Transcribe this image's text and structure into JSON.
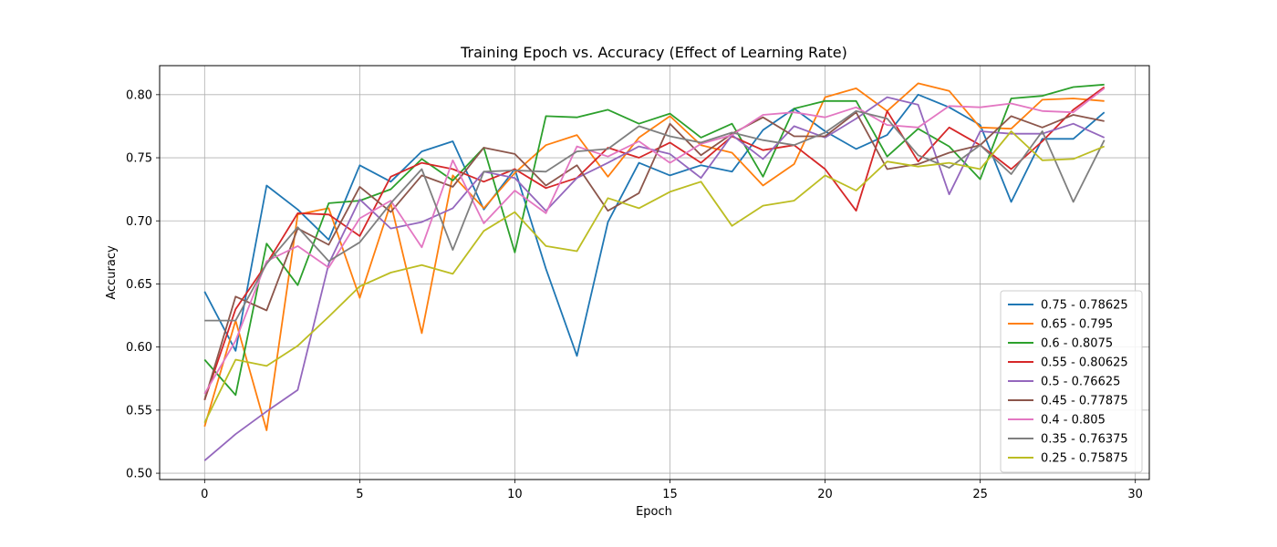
{
  "chart_data": {
    "type": "line",
    "title": "Training Epoch vs. Accuracy (Effect of Learning Rate)",
    "xlabel": "Epoch",
    "ylabel": "Accuracy",
    "xlim": [
      -1.45,
      30.45
    ],
    "ylim": [
      0.495,
      0.823
    ],
    "xticks": [
      0,
      5,
      10,
      15,
      20,
      25,
      30
    ],
    "yticks": [
      0.5,
      0.55,
      0.6,
      0.65,
      0.7,
      0.75,
      0.8
    ],
    "grid": true,
    "legend_position": "bottom-right",
    "x": [
      0,
      1,
      2,
      3,
      4,
      5,
      6,
      7,
      8,
      9,
      10,
      11,
      12,
      13,
      14,
      15,
      16,
      17,
      18,
      19,
      20,
      21,
      22,
      23,
      24,
      25,
      26,
      27,
      28,
      29
    ],
    "series": [
      {
        "name": "0.75 - 0.78625",
        "color": "#1f77b4",
        "values": [
          0.644,
          0.597,
          0.728,
          0.709,
          0.685,
          0.744,
          0.731,
          0.755,
          0.763,
          0.709,
          0.741,
          0.662,
          0.593,
          0.699,
          0.746,
          0.736,
          0.744,
          0.739,
          0.772,
          0.789,
          0.771,
          0.757,
          0.768,
          0.8,
          0.79,
          0.776,
          0.715,
          0.765,
          0.765,
          0.786
        ]
      },
      {
        "name": "0.65 - 0.795",
        "color": "#ff7f0e",
        "values": [
          0.537,
          0.621,
          0.534,
          0.705,
          0.71,
          0.639,
          0.714,
          0.611,
          0.736,
          0.71,
          0.738,
          0.76,
          0.768,
          0.735,
          0.766,
          0.783,
          0.76,
          0.754,
          0.728,
          0.745,
          0.798,
          0.805,
          0.787,
          0.809,
          0.803,
          0.774,
          0.773,
          0.796,
          0.797,
          0.795
        ]
      },
      {
        "name": "0.6 - 0.8075",
        "color": "#2ca02c",
        "values": [
          0.59,
          0.562,
          0.682,
          0.649,
          0.714,
          0.716,
          0.725,
          0.749,
          0.732,
          0.758,
          0.675,
          0.783,
          0.782,
          0.788,
          0.777,
          0.785,
          0.766,
          0.777,
          0.735,
          0.789,
          0.795,
          0.795,
          0.751,
          0.773,
          0.759,
          0.733,
          0.797,
          0.799,
          0.806,
          0.808
        ]
      },
      {
        "name": "0.55 - 0.80625",
        "color": "#d62728",
        "values": [
          0.558,
          0.63,
          0.666,
          0.706,
          0.705,
          0.688,
          0.735,
          0.746,
          0.741,
          0.731,
          0.741,
          0.726,
          0.734,
          0.758,
          0.75,
          0.762,
          0.746,
          0.767,
          0.756,
          0.76,
          0.741,
          0.708,
          0.787,
          0.747,
          0.774,
          0.76,
          0.741,
          0.763,
          0.788,
          0.806
        ]
      },
      {
        "name": "0.5 - 0.76625",
        "color": "#9467bd",
        "values": [
          0.51,
          0.531,
          0.549,
          0.566,
          0.666,
          0.717,
          0.694,
          0.699,
          0.71,
          0.739,
          0.734,
          0.708,
          0.734,
          0.746,
          0.759,
          0.753,
          0.734,
          0.768,
          0.749,
          0.775,
          0.766,
          0.781,
          0.798,
          0.792,
          0.721,
          0.771,
          0.769,
          0.769,
          0.777,
          0.766
        ]
      },
      {
        "name": "0.45 - 0.77875",
        "color": "#8c564b",
        "values": [
          0.558,
          0.64,
          0.629,
          0.694,
          0.681,
          0.727,
          0.707,
          0.736,
          0.727,
          0.758,
          0.753,
          0.728,
          0.744,
          0.708,
          0.722,
          0.777,
          0.752,
          0.769,
          0.782,
          0.767,
          0.767,
          0.786,
          0.741,
          0.745,
          0.754,
          0.76,
          0.783,
          0.774,
          0.784,
          0.779
        ]
      },
      {
        "name": "0.4 - 0.805",
        "color": "#e377c2",
        "values": [
          0.563,
          0.605,
          0.668,
          0.68,
          0.663,
          0.702,
          0.716,
          0.679,
          0.748,
          0.698,
          0.724,
          0.706,
          0.759,
          0.751,
          0.763,
          0.746,
          0.761,
          0.768,
          0.784,
          0.786,
          0.782,
          0.79,
          0.776,
          0.774,
          0.791,
          0.79,
          0.793,
          0.787,
          0.786,
          0.805
        ]
      },
      {
        "name": "0.35 - 0.76375",
        "color": "#7f7f7f",
        "values": [
          0.621,
          0.621,
          0.666,
          0.695,
          0.668,
          0.683,
          0.714,
          0.741,
          0.677,
          0.739,
          0.74,
          0.739,
          0.755,
          0.757,
          0.775,
          0.767,
          0.762,
          0.77,
          0.764,
          0.76,
          0.77,
          0.787,
          0.781,
          0.752,
          0.742,
          0.76,
          0.737,
          0.771,
          0.715,
          0.764
        ]
      },
      {
        "name": "0.25 - 0.75875",
        "color": "#bcbd22",
        "values": [
          0.54,
          0.59,
          0.585,
          0.601,
          0.624,
          0.648,
          0.659,
          0.665,
          0.658,
          0.692,
          0.707,
          0.68,
          0.676,
          0.718,
          0.71,
          0.723,
          0.731,
          0.696,
          0.712,
          0.716,
          0.736,
          0.724,
          0.747,
          0.743,
          0.746,
          0.741,
          0.771,
          0.748,
          0.749,
          0.759
        ]
      }
    ]
  }
}
